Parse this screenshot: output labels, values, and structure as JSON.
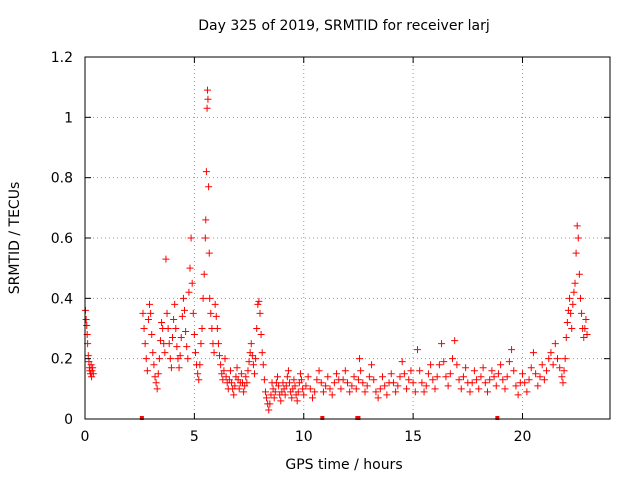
{
  "chart_data": {
    "type": "scatter",
    "title": "Day 325 of 2019, SRMTID for receiver larj",
    "xlabel": "GPS time / hours",
    "ylabel": "SRMTID / TECUs",
    "xlim": [
      0,
      24
    ],
    "ylim": [
      0,
      1.2
    ],
    "xticks": [
      "0",
      "5",
      "10",
      "15",
      "20"
    ],
    "yticks": [
      "0",
      "0.2",
      "0.4",
      "0.6",
      "0.8",
      "1",
      "1.2"
    ],
    "grid": true,
    "marker": "+",
    "series_color": "#ff0000",
    "series": [
      {
        "name": "larj",
        "points": [
          [
            0.02,
            0.36
          ],
          [
            0.05,
            0.33
          ],
          [
            0.08,
            0.31
          ],
          [
            0.1,
            0.28
          ],
          [
            0.12,
            0.25
          ],
          [
            0.15,
            0.21
          ],
          [
            0.18,
            0.19
          ],
          [
            0.2,
            0.17
          ],
          [
            0.22,
            0.16
          ],
          [
            0.25,
            0.15
          ],
          [
            0.28,
            0.18
          ],
          [
            0.3,
            0.14
          ],
          [
            0.32,
            0.16
          ],
          [
            0.35,
            0.17
          ],
          [
            0.38,
            0.15
          ],
          [
            2.65,
            0.35
          ],
          [
            2.7,
            0.3
          ],
          [
            2.75,
            0.25
          ],
          [
            2.8,
            0.2
          ],
          [
            2.85,
            0.16
          ],
          [
            2.9,
            0.33
          ],
          [
            2.95,
            0.38
          ],
          [
            3.0,
            0.35
          ],
          [
            3.05,
            0.28
          ],
          [
            3.1,
            0.22
          ],
          [
            3.15,
            0.18
          ],
          [
            3.2,
            0.14
          ],
          [
            3.25,
            0.12
          ],
          [
            3.3,
            0.1
          ],
          [
            3.35,
            0.15
          ],
          [
            3.4,
            0.2
          ],
          [
            3.45,
            0.26
          ],
          [
            3.5,
            0.32
          ],
          [
            3.55,
            0.3
          ],
          [
            3.6,
            0.25
          ],
          [
            3.65,
            0.22
          ],
          [
            3.7,
            0.53
          ],
          [
            3.75,
            0.35
          ],
          [
            3.8,
            0.3
          ],
          [
            3.85,
            0.25
          ],
          [
            3.9,
            0.2
          ],
          [
            3.95,
            0.17
          ],
          [
            4.0,
            0.27
          ],
          [
            4.05,
            0.33
          ],
          [
            4.1,
            0.38
          ],
          [
            4.15,
            0.3
          ],
          [
            4.2,
            0.24
          ],
          [
            4.25,
            0.2
          ],
          [
            4.3,
            0.17
          ],
          [
            4.35,
            0.21
          ],
          [
            4.4,
            0.27
          ],
          [
            4.45,
            0.34
          ],
          [
            4.5,
            0.4
          ],
          [
            4.55,
            0.36
          ],
          [
            4.6,
            0.29
          ],
          [
            4.65,
            0.24
          ],
          [
            4.7,
            0.2
          ],
          [
            4.75,
            0.42
          ],
          [
            4.8,
            0.5
          ],
          [
            4.85,
            0.6
          ],
          [
            4.9,
            0.45
          ],
          [
            4.95,
            0.35
          ],
          [
            5.0,
            0.28
          ],
          [
            5.05,
            0.22
          ],
          [
            5.1,
            0.18
          ],
          [
            5.15,
            0.15
          ],
          [
            5.2,
            0.13
          ],
          [
            5.25,
            0.18
          ],
          [
            5.3,
            0.25
          ],
          [
            5.35,
            0.3
          ],
          [
            5.4,
            0.4
          ],
          [
            5.45,
            0.48
          ],
          [
            5.5,
            0.6
          ],
          [
            5.52,
            0.66
          ],
          [
            5.55,
            0.82
          ],
          [
            5.58,
            1.03
          ],
          [
            5.6,
            1.09
          ],
          [
            5.62,
            1.06
          ],
          [
            5.65,
            0.77
          ],
          [
            5.68,
            0.55
          ],
          [
            5.7,
            0.4
          ],
          [
            5.75,
            0.35
          ],
          [
            5.8,
            0.3
          ],
          [
            5.85,
            0.25
          ],
          [
            5.9,
            0.22
          ],
          [
            5.95,
            0.38
          ],
          [
            6.0,
            0.34
          ],
          [
            6.05,
            0.3
          ],
          [
            6.1,
            0.25
          ],
          [
            6.15,
            0.21
          ],
          [
            6.2,
            0.18
          ],
          [
            6.25,
            0.15
          ],
          [
            6.3,
            0.13
          ],
          [
            6.35,
            0.16
          ],
          [
            6.4,
            0.2
          ],
          [
            6.45,
            0.14
          ],
          [
            6.5,
            0.12
          ],
          [
            6.55,
            0.1
          ],
          [
            6.6,
            0.13
          ],
          [
            6.65,
            0.16
          ],
          [
            6.7,
            0.12
          ],
          [
            6.75,
            0.1
          ],
          [
            6.8,
            0.08
          ],
          [
            6.85,
            0.11
          ],
          [
            6.9,
            0.14
          ],
          [
            6.95,
            0.17
          ],
          [
            7.0,
            0.13
          ],
          [
            7.05,
            0.1
          ],
          [
            7.1,
            0.12
          ],
          [
            7.15,
            0.15
          ],
          [
            7.2,
            0.12
          ],
          [
            7.25,
            0.09
          ],
          [
            7.3,
            0.11
          ],
          [
            7.35,
            0.14
          ],
          [
            7.4,
            0.12
          ],
          [
            7.45,
            0.16
          ],
          [
            7.5,
            0.19
          ],
          [
            7.55,
            0.22
          ],
          [
            7.6,
            0.25
          ],
          [
            7.65,
            0.21
          ],
          [
            7.7,
            0.18
          ],
          [
            7.75,
            0.15
          ],
          [
            7.8,
            0.2
          ],
          [
            7.85,
            0.3
          ],
          [
            7.9,
            0.38
          ],
          [
            7.95,
            0.39
          ],
          [
            8.0,
            0.35
          ],
          [
            8.05,
            0.28
          ],
          [
            8.1,
            0.22
          ],
          [
            8.15,
            0.18
          ],
          [
            8.2,
            0.13
          ],
          [
            8.25,
            0.09
          ],
          [
            8.3,
            0.07
          ],
          [
            8.35,
            0.05
          ],
          [
            8.4,
            0.03
          ],
          [
            8.45,
            0.05
          ],
          [
            8.5,
            0.08
          ],
          [
            8.55,
            0.12
          ],
          [
            8.6,
            0.1
          ],
          [
            8.65,
            0.07
          ],
          [
            8.7,
            0.09
          ],
          [
            8.75,
            0.12
          ],
          [
            8.8,
            0.14
          ],
          [
            8.85,
            0.11
          ],
          [
            8.9,
            0.08
          ],
          [
            8.95,
            0.06
          ],
          [
            9.0,
            0.09
          ],
          [
            9.05,
            0.12
          ],
          [
            9.1,
            0.1
          ],
          [
            9.15,
            0.08
          ],
          [
            9.2,
            0.11
          ],
          [
            9.25,
            0.14
          ],
          [
            9.3,
            0.16
          ],
          [
            9.35,
            0.12
          ],
          [
            9.4,
            0.09
          ],
          [
            9.45,
            0.07
          ],
          [
            9.5,
            0.1
          ],
          [
            9.55,
            0.13
          ],
          [
            9.6,
            0.11
          ],
          [
            9.65,
            0.08
          ],
          [
            9.7,
            0.06
          ],
          [
            9.75,
            0.09
          ],
          [
            9.8,
            0.12
          ],
          [
            9.85,
            0.15
          ],
          [
            9.9,
            0.13
          ],
          [
            9.95,
            0.1
          ],
          [
            10.0,
            0.08
          ],
          [
            10.1,
            0.11
          ],
          [
            10.2,
            0.14
          ],
          [
            10.3,
            0.1
          ],
          [
            10.4,
            0.07
          ],
          [
            10.5,
            0.09
          ],
          [
            10.6,
            0.13
          ],
          [
            10.7,
            0.16
          ],
          [
            10.8,
            0.12
          ],
          [
            10.9,
            0.09
          ],
          [
            11.0,
            0.11
          ],
          [
            11.1,
            0.14
          ],
          [
            11.2,
            0.1
          ],
          [
            11.3,
            0.08
          ],
          [
            11.4,
            0.12
          ],
          [
            11.5,
            0.15
          ],
          [
            11.6,
            0.13
          ],
          [
            11.7,
            0.1
          ],
          [
            11.8,
            0.13
          ],
          [
            11.9,
            0.16
          ],
          [
            12.0,
            0.12
          ],
          [
            12.1,
            0.09
          ],
          [
            12.2,
            0.11
          ],
          [
            12.3,
            0.14
          ],
          [
            12.4,
            0.1
          ],
          [
            12.5,
            0.13
          ],
          [
            12.55,
            0.2
          ],
          [
            12.6,
            0.16
          ],
          [
            12.7,
            0.12
          ],
          [
            12.8,
            0.09
          ],
          [
            12.9,
            0.11
          ],
          [
            13.0,
            0.14
          ],
          [
            13.1,
            0.18
          ],
          [
            13.2,
            0.13
          ],
          [
            13.3,
            0.09
          ],
          [
            13.4,
            0.07
          ],
          [
            13.5,
            0.1
          ],
          [
            13.6,
            0.14
          ],
          [
            13.7,
            0.11
          ],
          [
            13.8,
            0.08
          ],
          [
            13.9,
            0.12
          ],
          [
            14.0,
            0.15
          ],
          [
            14.1,
            0.12
          ],
          [
            14.2,
            0.09
          ],
          [
            14.3,
            0.11
          ],
          [
            14.4,
            0.14
          ],
          [
            14.5,
            0.19
          ],
          [
            14.6,
            0.15
          ],
          [
            14.7,
            0.1
          ],
          [
            14.8,
            0.13
          ],
          [
            14.9,
            0.16
          ],
          [
            15.0,
            0.12
          ],
          [
            15.1,
            0.09
          ],
          [
            15.2,
            0.23
          ],
          [
            15.3,
            0.16
          ],
          [
            15.4,
            0.12
          ],
          [
            15.5,
            0.09
          ],
          [
            15.6,
            0.11
          ],
          [
            15.7,
            0.15
          ],
          [
            15.8,
            0.18
          ],
          [
            15.9,
            0.13
          ],
          [
            16.0,
            0.1
          ],
          [
            16.1,
            0.14
          ],
          [
            16.2,
            0.18
          ],
          [
            16.3,
            0.25
          ],
          [
            16.4,
            0.19
          ],
          [
            16.5,
            0.14
          ],
          [
            16.6,
            0.11
          ],
          [
            16.7,
            0.15
          ],
          [
            16.8,
            0.2
          ],
          [
            16.9,
            0.26
          ],
          [
            17.0,
            0.18
          ],
          [
            17.1,
            0.13
          ],
          [
            17.2,
            0.1
          ],
          [
            17.3,
            0.14
          ],
          [
            17.4,
            0.17
          ],
          [
            17.5,
            0.12
          ],
          [
            17.6,
            0.09
          ],
          [
            17.7,
            0.12
          ],
          [
            17.8,
            0.16
          ],
          [
            17.9,
            0.13
          ],
          [
            18.0,
            0.1
          ],
          [
            18.1,
            0.14
          ],
          [
            18.2,
            0.17
          ],
          [
            18.3,
            0.12
          ],
          [
            18.4,
            0.09
          ],
          [
            18.5,
            0.13
          ],
          [
            18.6,
            0.16
          ],
          [
            18.7,
            0.14
          ],
          [
            18.8,
            0.11
          ],
          [
            18.9,
            0.15
          ],
          [
            19.0,
            0.18
          ],
          [
            19.1,
            0.13
          ],
          [
            19.2,
            0.1
          ],
          [
            19.3,
            0.14
          ],
          [
            19.4,
            0.19
          ],
          [
            19.5,
            0.23
          ],
          [
            19.6,
            0.16
          ],
          [
            19.7,
            0.11
          ],
          [
            19.8,
            0.08
          ],
          [
            19.9,
            0.12
          ],
          [
            20.0,
            0.15
          ],
          [
            20.1,
            0.12
          ],
          [
            20.2,
            0.09
          ],
          [
            20.3,
            0.13
          ],
          [
            20.4,
            0.17
          ],
          [
            20.5,
            0.22
          ],
          [
            20.6,
            0.15
          ],
          [
            20.7,
            0.11
          ],
          [
            20.8,
            0.14
          ],
          [
            20.9,
            0.18
          ],
          [
            21.0,
            0.13
          ],
          [
            21.1,
            0.16
          ],
          [
            21.2,
            0.2
          ],
          [
            21.3,
            0.22
          ],
          [
            21.4,
            0.18
          ],
          [
            21.5,
            0.25
          ],
          [
            21.6,
            0.2
          ],
          [
            21.7,
            0.17
          ],
          [
            21.8,
            0.14
          ],
          [
            21.85,
            0.12
          ],
          [
            21.9,
            0.16
          ],
          [
            21.95,
            0.2
          ],
          [
            22.0,
            0.27
          ],
          [
            22.05,
            0.32
          ],
          [
            22.1,
            0.36
          ],
          [
            22.15,
            0.4
          ],
          [
            22.2,
            0.35
          ],
          [
            22.25,
            0.3
          ],
          [
            22.3,
            0.38
          ],
          [
            22.35,
            0.42
          ],
          [
            22.4,
            0.45
          ],
          [
            22.45,
            0.55
          ],
          [
            22.5,
            0.64
          ],
          [
            22.55,
            0.6
          ],
          [
            22.6,
            0.48
          ],
          [
            22.65,
            0.4
          ],
          [
            22.7,
            0.35
          ],
          [
            22.75,
            0.3
          ],
          [
            22.8,
            0.27
          ],
          [
            22.85,
            0.3
          ],
          [
            22.9,
            0.33
          ],
          [
            22.95,
            0.28
          ]
        ]
      }
    ],
    "zero_markers_x": [
      2.6,
      10.85,
      12.45,
      12.5,
      18.85
    ]
  }
}
